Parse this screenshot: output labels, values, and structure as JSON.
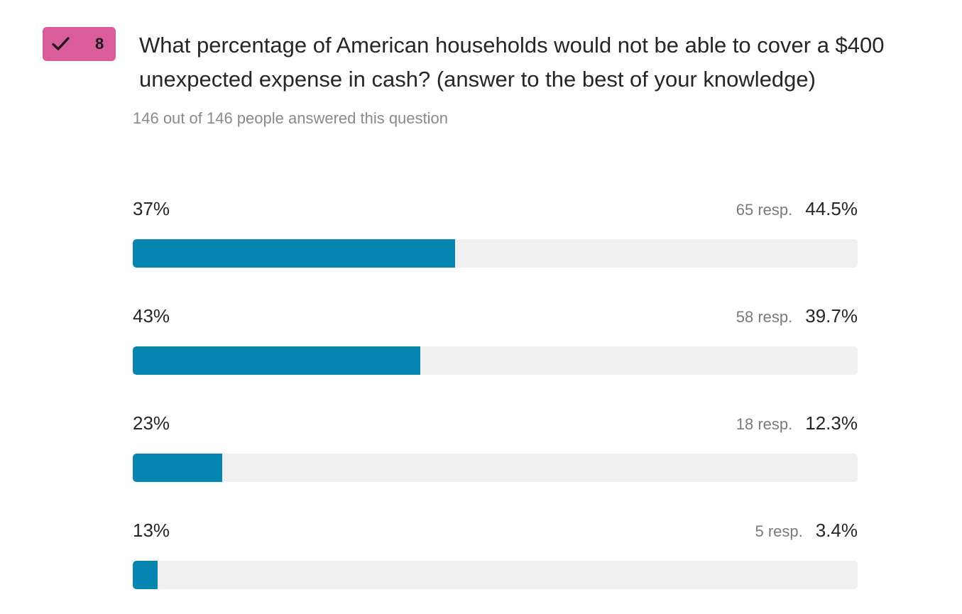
{
  "badge": {
    "icon": "check-icon",
    "number": "8",
    "color": "#d95d9b"
  },
  "question": {
    "text": "What percentage of American households would not be able to cover a $400 unexpected expense in cash? (answer to the best of your knowledge)",
    "answered_text": "146 out of 146 people answered this question"
  },
  "accent_color": "#0486b0",
  "chart_data": {
    "type": "bar",
    "categories": [
      "37%",
      "43%",
      "23%",
      "13%"
    ],
    "series": [
      {
        "values": [
          65,
          58,
          18,
          5
        ]
      }
    ],
    "percent_values": [
      44.5,
      39.7,
      12.3,
      3.4
    ]
  },
  "options": [
    {
      "label": "37%",
      "responses": "65 resp.",
      "percent": "44.5%",
      "fraction": 0.445
    },
    {
      "label": "43%",
      "responses": "58 resp.",
      "percent": "39.7%",
      "fraction": 0.397
    },
    {
      "label": "23%",
      "responses": "18 resp.",
      "percent": "12.3%",
      "fraction": 0.123
    },
    {
      "label": "13%",
      "responses": "5 resp.",
      "percent": "3.4%",
      "fraction": 0.034
    }
  ]
}
